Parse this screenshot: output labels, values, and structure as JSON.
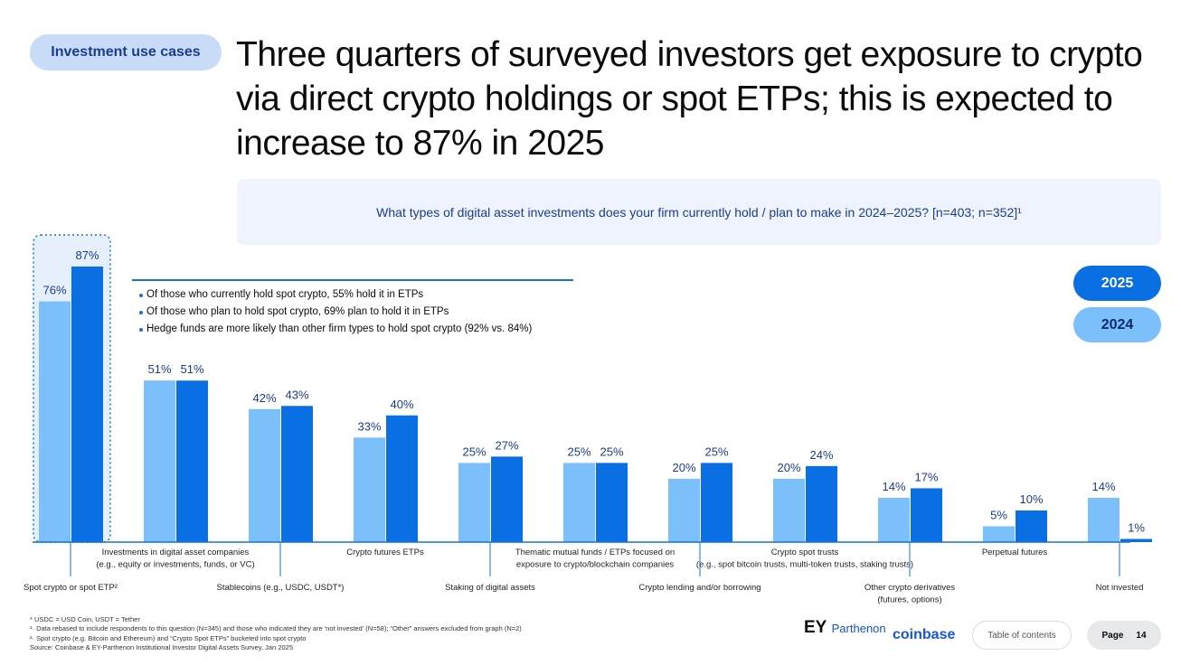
{
  "tag": "Investment use cases",
  "title": "Three quarters of surveyed investors get exposure to crypto via direct crypto holdings or spot ETPs; this is expected to increase to 87% in 2025",
  "question": "What types of digital asset investments does your firm currently hold / plan to make in 2024–2025? [n=403; n=352]¹",
  "notes": [
    "Of those who currently hold spot crypto, 55% hold it in ETPs",
    "Of those who plan to hold spot crypto, 69% plan to hold it in ETPs",
    "Hedge funds are more likely than other firm types to hold spot crypto (92% vs. 84%)"
  ],
  "chart_data": {
    "type": "bar",
    "categories": [
      "Spot crypto or spot ETP²",
      "Investments in digital asset companies (e.g., equity or investments, funds, or VC)",
      "Stablecoins (e.g., USDC, USDT*)",
      "Crypto futures ETPs",
      "Staking of digital assets",
      "Thematic mutual funds / ETPs focused on exposure to crypto/blockchain companies",
      "Crypto lending and/or borrowing",
      "Crypto spot trusts (e.g., spot bitcoin trusts, multi-token trusts, staking trusts)",
      "Other crypto derivatives (futures, options)",
      "Perpetual futures",
      "Not invested"
    ],
    "series": [
      {
        "name": "2024",
        "values": [
          76,
          51,
          42,
          33,
          25,
          25,
          20,
          20,
          14,
          5,
          14
        ],
        "color": "#7cc0fb"
      },
      {
        "name": "2025",
        "values": [
          87,
          51,
          43,
          40,
          27,
          25,
          25,
          24,
          17,
          10,
          1
        ],
        "color": "#0a6fe3"
      }
    ],
    "ylim": [
      0,
      90
    ],
    "legend": "right",
    "grid": false,
    "highlight": "Spot crypto or spot ETP²",
    "unit": "%"
  },
  "footnotes": [
    "* USDC = USD Coin, USDT = Tether",
    "¹· Data rebased to include respondents to this question (N=345) and those who indicated they are 'not invested' (N=58); “Other” answers excluded from graph (N=2)",
    "²· Spot crypto (e.g. Bitcoin and Ethereum) and “Crypto Spot ETPs” bucketed into spot crypto",
    "Source: Coinbase & EY-Parthenon Institutional Investor Digital Assets Survey, Jan 2025"
  ],
  "logos": {
    "ey": "EY",
    "parthenon": "Parthenon",
    "coinbase": "coinbase"
  },
  "toc": "Table of contents",
  "page": {
    "label": "Page",
    "number": "14"
  }
}
